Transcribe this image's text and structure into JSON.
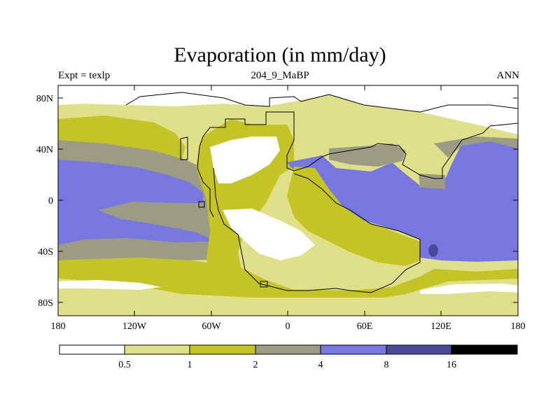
{
  "title": "Evaporation (in mm/day)",
  "left_label": "Expt = texlp",
  "center_label": "204_9_MaBP",
  "right_label": "ANN",
  "y_ticks": [
    {
      "value": 80,
      "label": "80N"
    },
    {
      "value": 40,
      "label": "40N"
    },
    {
      "value": 0,
      "label": "0"
    },
    {
      "value": -40,
      "label": "40S"
    },
    {
      "value": -80,
      "label": "80S"
    }
  ],
  "x_ticks": [
    {
      "value": -180,
      "label": "180"
    },
    {
      "value": -120,
      "label": "120W"
    },
    {
      "value": -60,
      "label": "60W"
    },
    {
      "value": 0,
      "label": "0"
    },
    {
      "value": 60,
      "label": "60E"
    },
    {
      "value": 120,
      "label": "120E"
    },
    {
      "value": 180,
      "label": "180"
    }
  ],
  "colorbar": {
    "colors": [
      "#ffffff",
      "#e0e08a",
      "#c4c427",
      "#9c9c84",
      "#7777e0",
      "#4a4a9a",
      "#000000"
    ],
    "labels": [
      "0.5",
      "1",
      "2",
      "4",
      "8",
      "16"
    ]
  },
  "fill_colors": {
    "white": "#ffffff",
    "light": "#e0e08a",
    "olive": "#c4c427",
    "gray": "#9c9c84",
    "blue": "#7777e0",
    "dark": "#4a4a9a"
  }
}
